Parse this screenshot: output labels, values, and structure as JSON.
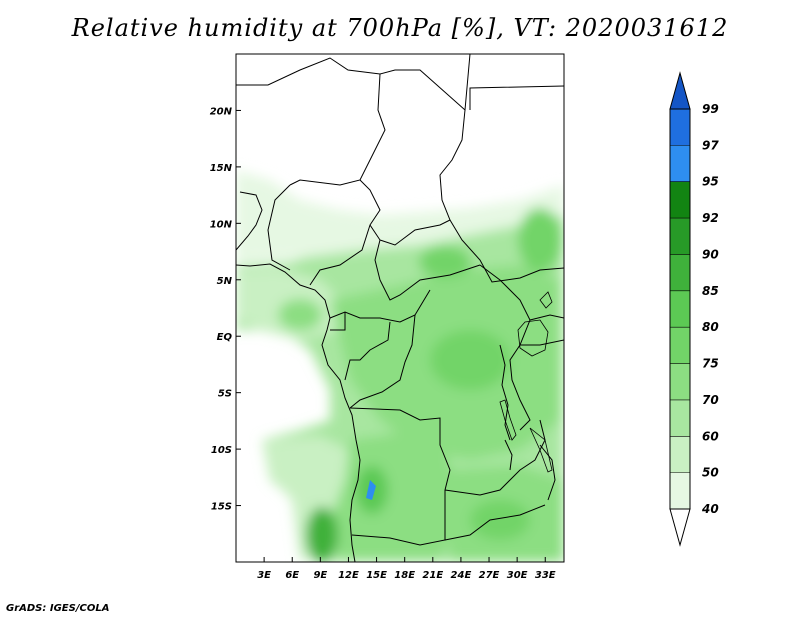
{
  "title": "Relative humidity at 700hPa [%], VT: 2020031612",
  "credit": "GrADS: IGES/COLA",
  "map": {
    "lon_range": [
      0,
      35
    ],
    "lat_range": [
      -20,
      25
    ],
    "lon_ticks": [
      {
        "value": 3,
        "label": "3E"
      },
      {
        "value": 6,
        "label": "6E"
      },
      {
        "value": 9,
        "label": "9E"
      },
      {
        "value": 12,
        "label": "12E"
      },
      {
        "value": 15,
        "label": "15E"
      },
      {
        "value": 18,
        "label": "18E"
      },
      {
        "value": 21,
        "label": "21E"
      },
      {
        "value": 24,
        "label": "24E"
      },
      {
        "value": 27,
        "label": "27E"
      },
      {
        "value": 30,
        "label": "30E"
      },
      {
        "value": 33,
        "label": "33E"
      }
    ],
    "lat_ticks": [
      {
        "value": 20,
        "label": "20N"
      },
      {
        "value": 15,
        "label": "15N"
      },
      {
        "value": 10,
        "label": "10N"
      },
      {
        "value": 5,
        "label": "5N"
      },
      {
        "value": 0,
        "label": "EQ"
      },
      {
        "value": -5,
        "label": "5S"
      },
      {
        "value": -10,
        "label": "10S"
      },
      {
        "value": -15,
        "label": "15S"
      }
    ]
  },
  "colorbar": {
    "labels": [
      "40",
      "50",
      "60",
      "70",
      "75",
      "80",
      "85",
      "90",
      "92",
      "95",
      "97",
      "99"
    ],
    "colors": [
      "#ffffff",
      "#e6f8e3",
      "#c9f0c3",
      "#a8e6a0",
      "#8cde82",
      "#72d468",
      "#5cc954",
      "#3fb13b",
      "#279a27",
      "#128412",
      "#2e8ef0",
      "#1f6fdf",
      "#1456c6"
    ]
  }
}
